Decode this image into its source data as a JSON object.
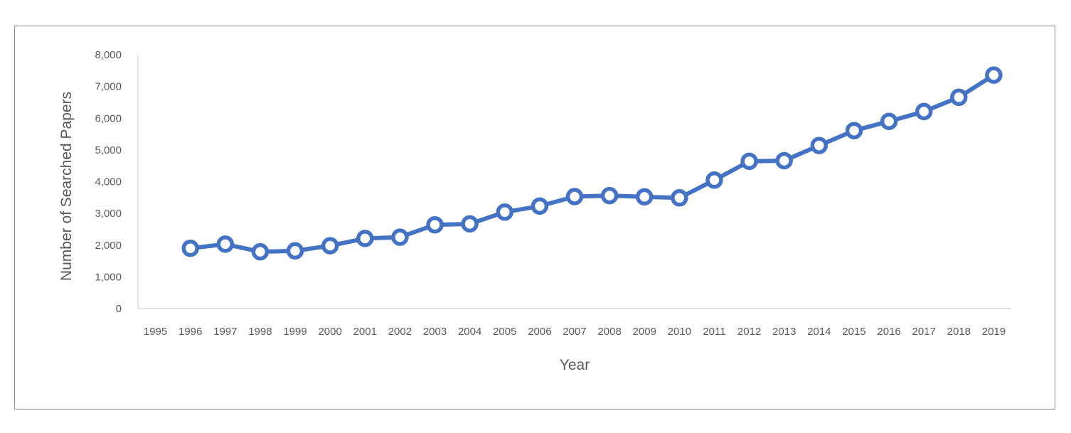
{
  "chart_data": {
    "type": "line",
    "title": "",
    "xlabel": "Year",
    "ylabel": "Number of Searched Papers",
    "x_tick_labels": [
      "1995",
      "1996",
      "1997",
      "1998",
      "1999",
      "2000",
      "2001",
      "2002",
      "2003",
      "2004",
      "2005",
      "2006",
      "2007",
      "2008",
      "2009",
      "2010",
      "2011",
      "2012",
      "2013",
      "2014",
      "2015",
      "2016",
      "2017",
      "2018",
      "2019"
    ],
    "y_tick_labels": [
      "0",
      "1,000",
      "2,000",
      "3,000",
      "4,000",
      "5,000",
      "6,000",
      "7,000",
      "8,000"
    ],
    "ylim": [
      0,
      8000
    ],
    "grid": false,
    "legend": "none",
    "series": [
      {
        "x": [
          "1996",
          "1997",
          "1998",
          "1999",
          "2000",
          "2001",
          "2002",
          "2003",
          "2004",
          "2005",
          "2006",
          "2007",
          "2008",
          "2009",
          "2010",
          "2011",
          "2012",
          "2013",
          "2014",
          "2015",
          "2016",
          "2017",
          "2018",
          "2019"
        ],
        "values": [
          1900,
          2030,
          1790,
          1820,
          1980,
          2210,
          2250,
          2640,
          2670,
          3040,
          3230,
          3530,
          3560,
          3520,
          3490,
          4050,
          4640,
          4660,
          5140,
          5610,
          5900,
          6210,
          6660,
          7360
        ]
      }
    ],
    "colors": {
      "line": "#4472C4",
      "axis": "#d9d9d9",
      "text": "#595959"
    }
  }
}
